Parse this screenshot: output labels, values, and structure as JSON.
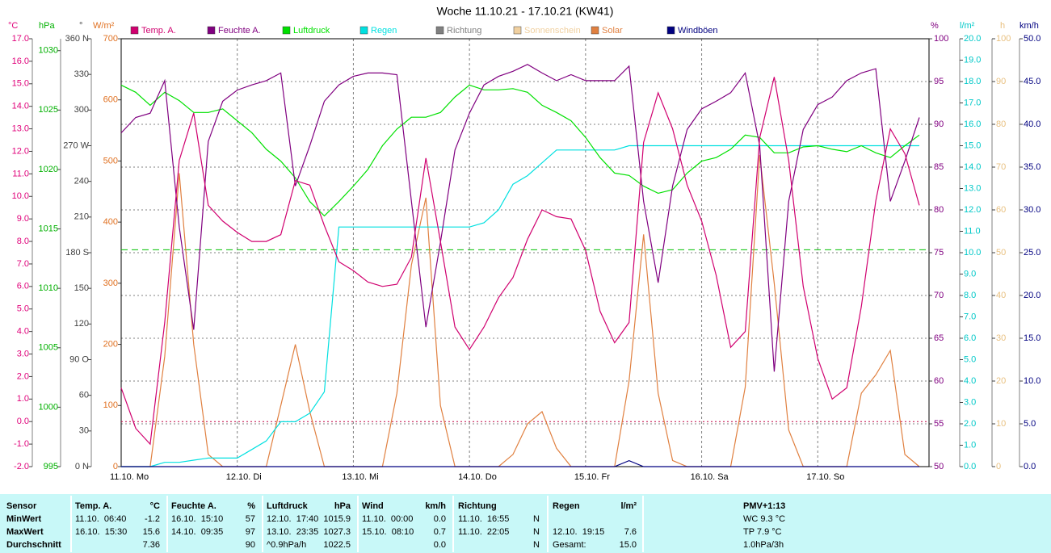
{
  "chart_data": {
    "type": "line",
    "title": "Woche 11.10.21 - 17.10.21 (KW41)",
    "x": [
      0,
      3,
      6,
      9,
      12,
      15,
      18,
      21,
      24,
      27,
      30,
      33,
      36,
      39,
      42,
      45,
      48,
      51,
      54,
      57,
      60,
      63,
      66,
      69,
      72,
      75,
      78,
      81,
      84,
      87,
      90,
      93,
      96,
      99,
      102,
      105,
      108,
      111,
      114,
      117,
      120,
      123,
      126,
      129,
      132,
      135,
      138,
      141,
      144,
      147,
      150,
      153,
      156,
      159,
      162,
      165
    ],
    "xlim": [
      0,
      167
    ],
    "xticks": [
      {
        "value": 0,
        "label": "11.10. Mo"
      },
      {
        "value": 24,
        "label": "12.10. Di"
      },
      {
        "value": 48,
        "label": "13.10. Mi"
      },
      {
        "value": 72,
        "label": "14.10. Do"
      },
      {
        "value": 96,
        "label": "15.10. Fr"
      },
      {
        "value": 120,
        "label": "16.10. Sa"
      },
      {
        "value": 144,
        "label": "17.10. So"
      }
    ],
    "grid": true,
    "axes": {
      "temp": {
        "unit": "°C",
        "color": "#e0007a",
        "lim": [
          -2,
          17
        ],
        "ticks": [
          {
            "value": -2,
            "label": "-2.0"
          },
          {
            "value": -1,
            "label": "-1.0"
          },
          {
            "value": 0,
            "label": "0.0"
          },
          {
            "value": 1,
            "label": "1.0"
          },
          {
            "value": 2,
            "label": "2.0"
          },
          {
            "value": 3,
            "label": "3.0"
          },
          {
            "value": 4,
            "label": "4.0"
          },
          {
            "value": 5,
            "label": "5.0"
          },
          {
            "value": 6,
            "label": "6.0"
          },
          {
            "value": 7,
            "label": "7.0"
          },
          {
            "value": 8,
            "label": "8.0"
          },
          {
            "value": 9,
            "label": "9.0"
          },
          {
            "value": 10,
            "label": "10.0"
          },
          {
            "value": 11,
            "label": "11.0"
          },
          {
            "value": 12,
            "label": "12.0"
          },
          {
            "value": 13,
            "label": "13.0"
          },
          {
            "value": 14,
            "label": "14.0"
          },
          {
            "value": 15,
            "label": "15.0"
          },
          {
            "value": 16,
            "label": "16.0"
          },
          {
            "value": 17,
            "label": "17.0"
          }
        ]
      },
      "pressure": {
        "unit": "hPa",
        "color": "#00b000",
        "lim": [
          995,
          1031
        ],
        "ticks": [
          995,
          1000,
          1005,
          1010,
          1015,
          1020,
          1025,
          1030
        ]
      },
      "direction": {
        "unit": "°",
        "color": "#404040",
        "lim": [
          0,
          360
        ],
        "ticks": [
          {
            "value": 0,
            "label": "0 N"
          },
          30,
          60,
          {
            "value": 90,
            "label": "90 O"
          },
          120,
          150,
          {
            "value": 180,
            "label": "180 S"
          },
          210,
          240,
          {
            "value": 270,
            "label": "270 W"
          },
          300,
          330,
          {
            "value": 360,
            "label": "360 N"
          }
        ]
      },
      "solar": {
        "unit": "W/m²",
        "color": "#e07020",
        "lim": [
          0,
          700
        ],
        "ticks": [
          0,
          100,
          200,
          300,
          400,
          500,
          600,
          700
        ]
      },
      "humidity": {
        "unit": "%",
        "color": "#800080",
        "lim": [
          50,
          100
        ],
        "ticks": [
          50,
          55,
          60,
          65,
          70,
          75,
          80,
          85,
          90,
          95,
          100
        ]
      },
      "rain": {
        "unit": "l/m²",
        "color": "#00c8c8",
        "lim": [
          0,
          20
        ],
        "ticks": [
          {
            "value": 0,
            "label": "0.0"
          },
          {
            "value": 1,
            "label": "1.0"
          },
          {
            "value": 2,
            "label": "2.0"
          },
          {
            "value": 3,
            "label": "3.0"
          },
          {
            "value": 4,
            "label": "4.0"
          },
          {
            "value": 5,
            "label": "5.0"
          },
          {
            "value": 6,
            "label": "6.0"
          },
          {
            "value": 7,
            "label": "7.0"
          },
          {
            "value": 8,
            "label": "8.0"
          },
          {
            "value": 9,
            "label": "9.0"
          },
          {
            "value": 10,
            "label": "10.0"
          },
          {
            "value": 11,
            "label": "11.0"
          },
          {
            "value": 12,
            "label": "12.0"
          },
          {
            "value": 13,
            "label": "13.0"
          },
          {
            "value": 14,
            "label": "14.0"
          },
          {
            "value": 15,
            "label": "15.0"
          },
          {
            "value": 16,
            "label": "16.0"
          },
          {
            "value": 17,
            "label": "17.0"
          },
          {
            "value": 18,
            "label": "18.0"
          },
          {
            "value": 19,
            "label": "19.0"
          },
          {
            "value": 20,
            "label": "20.0"
          }
        ]
      },
      "sunshine": {
        "unit": "h",
        "color": "#e8c080",
        "lim": [
          0,
          100
        ],
        "ticks": [
          0,
          10,
          20,
          30,
          40,
          50,
          60,
          70,
          80,
          90,
          100
        ]
      },
      "wind": {
        "unit": "km/h",
        "color": "#000080",
        "lim": [
          0,
          50
        ],
        "ticks": [
          {
            "value": 0,
            "label": "0.0"
          },
          {
            "value": 5,
            "label": "5.0"
          },
          {
            "value": 10,
            "label": "10.0"
          },
          {
            "value": 15,
            "label": "15.0"
          },
          {
            "value": 20,
            "label": "20.0"
          },
          {
            "value": 25,
            "label": "25.0"
          },
          {
            "value": 30,
            "label": "30.0"
          },
          {
            "value": 35,
            "label": "35.0"
          },
          {
            "value": 40,
            "label": "40.0"
          },
          {
            "value": 45,
            "label": "45.0"
          },
          {
            "value": 50,
            "label": "50.0"
          }
        ]
      }
    },
    "series": [
      {
        "name": "Temp. A.",
        "color": "#d0006f",
        "axis": "temp",
        "values": [
          1.5,
          -0.3,
          -1.0,
          4.4,
          11.6,
          13.7,
          9.6,
          8.9,
          8.4,
          8.0,
          8.0,
          8.3,
          10.7,
          10.5,
          8.7,
          7.1,
          6.7,
          6.2,
          6.0,
          6.1,
          7.3,
          11.7,
          8.0,
          4.2,
          3.2,
          4.2,
          5.5,
          6.4,
          8.1,
          9.4,
          9.1,
          9.0,
          7.6,
          4.9,
          3.5,
          4.4,
          12.4,
          14.6,
          13.0,
          10.5,
          8.9,
          6.5,
          3.3,
          4.0,
          12.6,
          15.3,
          11.6,
          6.0,
          2.8,
          1.0,
          1.5,
          5.1,
          9.8,
          13.0,
          11.9,
          9.6
        ]
      },
      {
        "name": "Feuchte A.",
        "color": "#800080",
        "axis": "humidity",
        "values": [
          89,
          90.8,
          91.3,
          95.1,
          78,
          66,
          88,
          92.7,
          94,
          94.6,
          95.1,
          96,
          82.8,
          87.5,
          92.7,
          94.6,
          95.6,
          96,
          96,
          95.8,
          81,
          66.3,
          76.2,
          87,
          91.3,
          94.6,
          95.6,
          96.2,
          97,
          96,
          95.1,
          95.8,
          95.1,
          95.1,
          95.1,
          96.8,
          81,
          71.5,
          82.8,
          89.4,
          91.8,
          92.7,
          93.7,
          96,
          87.5,
          61.1,
          81,
          89.4,
          92.3,
          93.2,
          95.1,
          96,
          96.5,
          81,
          85.7,
          90.8
        ]
      },
      {
        "name": "Luftdruck",
        "color": "#00e000",
        "axis": "pressure",
        "values": [
          1027.1,
          1026.5,
          1025.4,
          1026.5,
          1025.8,
          1024.8,
          1024.8,
          1025.1,
          1024.1,
          1023.1,
          1021.7,
          1020.7,
          1019.3,
          1017.3,
          1016.1,
          1017.3,
          1018.6,
          1020,
          1022,
          1023.4,
          1024.4,
          1024.4,
          1024.8,
          1026.1,
          1027.1,
          1026.7,
          1026.7,
          1026.8,
          1026.5,
          1025.4,
          1024.8,
          1024.1,
          1022.7,
          1021,
          1019.7,
          1019.5,
          1018.6,
          1018,
          1018.3,
          1019.7,
          1020.7,
          1021,
          1021.7,
          1022.9,
          1022.7,
          1021.4,
          1021.4,
          1021.9,
          1022,
          1021.7,
          1021.5,
          1022,
          1021.4,
          1021,
          1022,
          1022.9
        ]
      },
      {
        "name": "Regen",
        "color": "#00e0e0",
        "axis": "rain",
        "values": [
          0,
          0,
          0,
          0.2,
          0.2,
          0.3,
          0.4,
          0.4,
          0.4,
          0.8,
          1.2,
          2.1,
          2.1,
          2.5,
          3.5,
          11.2,
          11.2,
          11.2,
          11.2,
          11.2,
          11.2,
          11.2,
          11.2,
          11.2,
          11.2,
          11.4,
          12.0,
          13.2,
          13.6,
          14.2,
          14.8,
          14.8,
          14.8,
          14.8,
          14.8,
          15.0,
          15.0,
          15.0,
          15.0,
          15.0,
          15.0,
          15.0,
          15.0,
          15.0,
          15.0,
          15.0,
          15.0,
          15.0,
          15.0,
          15.0,
          15.0,
          15.0,
          15.0,
          15.0,
          15.0,
          15.0
        ]
      },
      {
        "name": "Solar",
        "color": "#e08040",
        "axis": "solar",
        "values": [
          0,
          0,
          0,
          180,
          480,
          200,
          20,
          0,
          0,
          0,
          0,
          100,
          200,
          90,
          0,
          0,
          0,
          0,
          0,
          120,
          330,
          440,
          100,
          0,
          0,
          0,
          0,
          20,
          70,
          90,
          30,
          0,
          0,
          0,
          0,
          140,
          380,
          120,
          10,
          0,
          0,
          0,
          0,
          130,
          510,
          300,
          60,
          0,
          0,
          0,
          0,
          120,
          150,
          190,
          20,
          0
        ]
      },
      {
        "name": "Windböen",
        "color": "#000080",
        "axis": "wind",
        "values": [
          0,
          0,
          0,
          0,
          0,
          0,
          0,
          0,
          0,
          0,
          0,
          0,
          0,
          0,
          0,
          0,
          0,
          0,
          0,
          0,
          0,
          0,
          0,
          0,
          0,
          0,
          0,
          0,
          0,
          0,
          0,
          0,
          0,
          0,
          0,
          0.7,
          0,
          0,
          0,
          0,
          0,
          0,
          0,
          0,
          0,
          0,
          0,
          0,
          0,
          0,
          0,
          0,
          0,
          0,
          0,
          0
        ]
      }
    ],
    "legend_extra": [
      {
        "name": "Richtung",
        "color": "#808080"
      },
      {
        "name": "Sonnenschein",
        "color": "#f0d0a0"
      }
    ],
    "reference_lines": [
      {
        "axis": "pressure",
        "value": 1013.25,
        "color": "#00c000"
      },
      {
        "axis": "temp",
        "value": 0,
        "color": "#c00040"
      }
    ]
  },
  "table": {
    "header": [
      "Sensor",
      "Temp. A.",
      "°C",
      "Feuchte A.",
      "%",
      "Luftdruck",
      "hPa",
      "Wind",
      "km/h",
      "Richtung",
      null,
      "Regen",
      "l/m²",
      "PMV+1:13"
    ],
    "rows": [
      [
        "MinWert",
        "11.10.  06:40",
        "-1.2",
        "16.10.  15:10",
        "57",
        "12.10.  17:40",
        "1015.9",
        "11.10.  00:00",
        "0.0",
        "11.10.  16:55",
        "N",
        null,
        null,
        "WC 9.3 °C"
      ],
      [
        "MaxWert",
        "16.10.  15:30",
        "15.6",
        "14.10.  09:35",
        "97",
        "13.10.  23:35",
        "1027.3",
        "15.10.  08:10",
        "0.7",
        "11.10.  22:05",
        "N",
        "12.10.  19:15",
        "7.6",
        "TP 7.9 °C"
      ],
      [
        "Durchschnitt",
        null,
        "7.36",
        null,
        "90",
        "^0.9hPa/h",
        "1022.5",
        null,
        "0.0",
        null,
        "N",
        "Gesamt:",
        "15.0",
        "1.0hPa/3h"
      ]
    ]
  }
}
